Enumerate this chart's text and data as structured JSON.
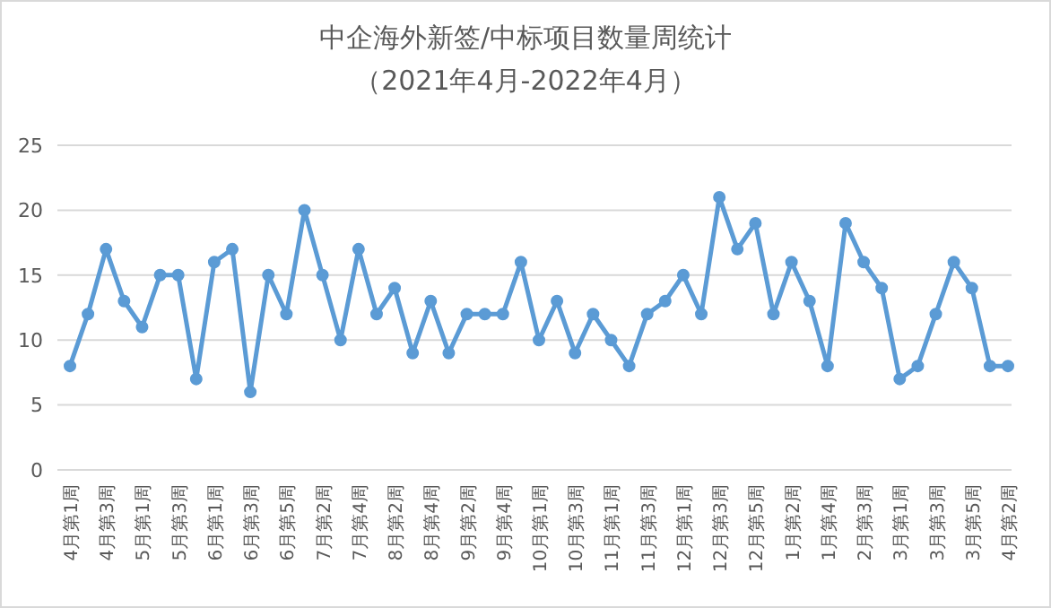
{
  "chart_data": {
    "type": "line",
    "title": "中企海外新签/中标项目数量周统计",
    "subtitle": "（2021年4月-2022年4月）",
    "categories": [
      "4月第1周",
      null,
      "4月第3周",
      null,
      "5月第1周",
      null,
      "5月第3周",
      null,
      "6月第1周",
      null,
      "6月第3周",
      null,
      "6月第5周",
      null,
      "7月第2周",
      null,
      "7月第4周",
      null,
      "8月第2周",
      null,
      "8月第4周",
      null,
      "9月第2周",
      null,
      "9月第4周",
      null,
      "10月第1周",
      null,
      "10月第3周",
      null,
      "11月第1周",
      null,
      "11月第3周",
      null,
      "12月第1周",
      null,
      "12月第3周",
      null,
      "12月第5周",
      null,
      "1月第2周",
      null,
      "1月第4周",
      null,
      "2月第3周",
      null,
      "3月第1周",
      null,
      "3月第3周",
      null,
      "3月第5周",
      null,
      "4月第2周"
    ],
    "series": [
      {
        "color": "#5b9bd5",
        "values": [
          8,
          12,
          17,
          13,
          11,
          15,
          15,
          7,
          16,
          17,
          6,
          15,
          12,
          20,
          15,
          10,
          17,
          12,
          14,
          9,
          13,
          9,
          12,
          12,
          12,
          16,
          10,
          13,
          9,
          12,
          10,
          8,
          12,
          13,
          15,
          12,
          21,
          17,
          19,
          12,
          16,
          13,
          8,
          19,
          16,
          14,
          7,
          8,
          12,
          16,
          14,
          8,
          8
        ]
      }
    ],
    "ylim": [
      0,
      25
    ],
    "yticks": [
      0,
      5,
      10,
      15,
      20,
      25
    ],
    "grid": "y",
    "marker": "circle",
    "line_style": "solid"
  }
}
